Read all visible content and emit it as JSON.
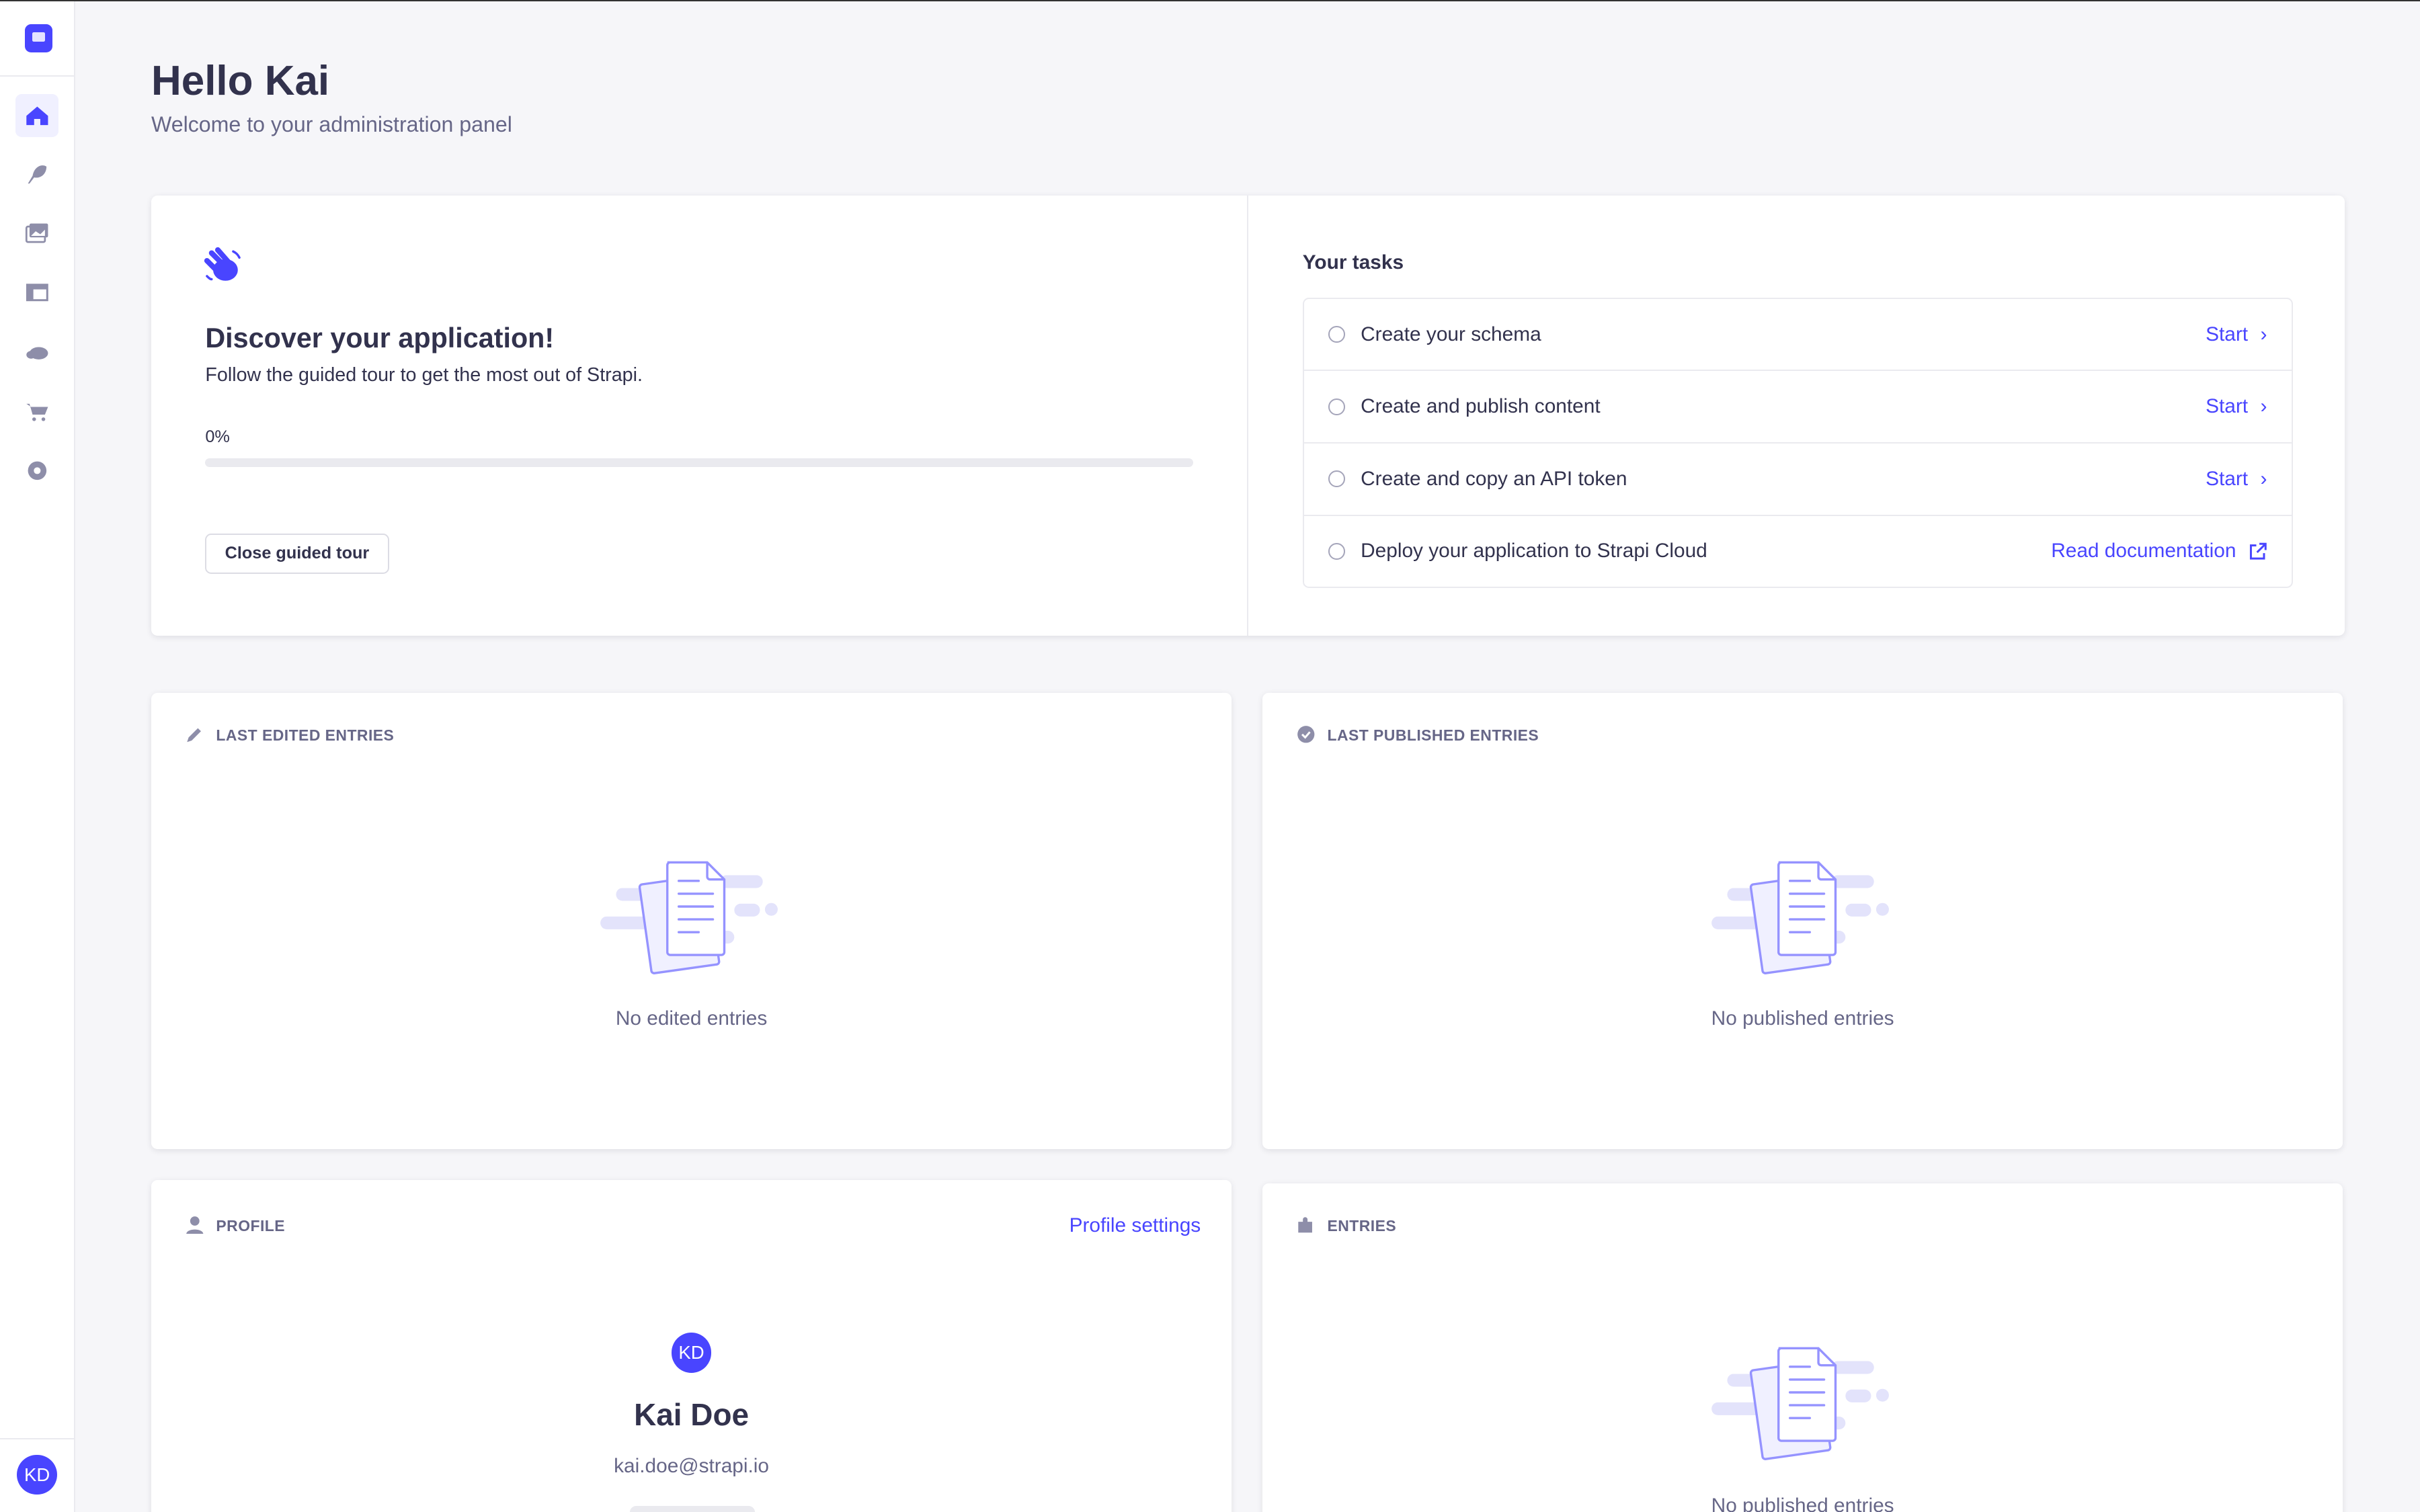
{
  "sidebar": {
    "items": [
      {
        "icon": "home-icon",
        "active": true
      },
      {
        "icon": "feather-icon"
      },
      {
        "icon": "images-icon"
      },
      {
        "icon": "layout-icon"
      },
      {
        "icon": "cloud-icon"
      },
      {
        "icon": "cart-icon"
      },
      {
        "icon": "gear-icon"
      }
    ],
    "user_initials": "KD"
  },
  "header": {
    "title": "Hello Kai",
    "subtitle": "Welcome to your administration panel"
  },
  "guided_tour": {
    "title": "Discover your application!",
    "description": "Follow the guided tour to get the most out of Strapi.",
    "progress_label": "0%",
    "progress": 0,
    "close_label": "Close guided tour"
  },
  "tasks": {
    "title": "Your tasks",
    "items": [
      {
        "label": "Create your schema",
        "action": "Start"
      },
      {
        "label": "Create and publish content",
        "action": "Start"
      },
      {
        "label": "Create and copy an API token",
        "action": "Start"
      },
      {
        "label": "Deploy your application to Strapi Cloud",
        "action": "Read documentation"
      }
    ]
  },
  "widgets": {
    "last_edited": {
      "title": "Last edited entries",
      "empty": "No edited entries"
    },
    "last_published": {
      "title": "Last published entries",
      "empty": "No published entries"
    },
    "profile": {
      "title": "Profile",
      "settings_link": "Profile settings",
      "initials": "KD",
      "name": "Kai Doe",
      "email": "kai.doe@strapi.io"
    },
    "entries": {
      "title": "Entries",
      "empty": "No published entries"
    }
  },
  "colors": {
    "accent": "#4945ff",
    "text": "#32324d",
    "muted": "#666687",
    "background": "#f6f6f9"
  }
}
